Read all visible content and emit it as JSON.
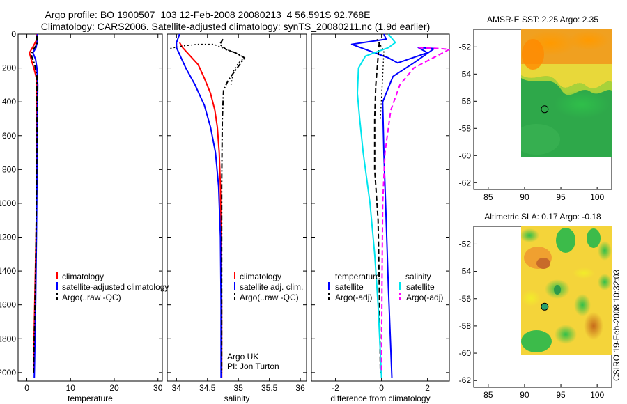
{
  "header": {
    "title_line1": "Argo profile: BO 1900507_103 12-Feb-2008 20080213_4 56.591S 92.768E",
    "title_line2": "Climatology: CARS2006. Satellite-adjusted climatology: synTS_20080211.nc (1.9d earlier)"
  },
  "credit": "CSIRO 19-Feb-2008 10:32:03",
  "colors": {
    "climatology": "#ff0000",
    "satellite": "#0000ff",
    "argo": "#000000",
    "satellite_sal": "#00e5ee",
    "argo_sal_adj": "#ff00ff"
  },
  "chart_data": [
    {
      "id": "temperature",
      "type": "line",
      "xlabel": "temperature",
      "ylabel": "",
      "xlim": [
        -2,
        31
      ],
      "ylim": [
        2050,
        0
      ],
      "xticks": [
        0,
        10,
        20,
        30
      ],
      "yticks": [
        0,
        200,
        400,
        600,
        800,
        1000,
        1200,
        1400,
        1600,
        1800,
        2000
      ],
      "legend": {
        "position": "bottom-right",
        "entries": [
          "climatology",
          "satellite-adjusted climatology",
          "Argo(..raw -QC)"
        ]
      },
      "series": [
        {
          "name": "climatology",
          "color": "#ff0000",
          "style": "solid",
          "points": [
            [
              2.2,
              0
            ],
            [
              2.3,
              30
            ],
            [
              1.5,
              70
            ],
            [
              0.6,
              110
            ],
            [
              1.0,
              150
            ],
            [
              1.6,
              200
            ],
            [
              2.2,
              260
            ],
            [
              2.3,
              400
            ],
            [
              2.3,
              800
            ],
            [
              2.1,
              1200
            ],
            [
              1.8,
              1600
            ],
            [
              1.5,
              2000
            ]
          ]
        },
        {
          "name": "satellite-adjusted climatology",
          "color": "#0000ff",
          "style": "solid",
          "points": [
            [
              2.4,
              0
            ],
            [
              2.4,
              40
            ],
            [
              2.1,
              80
            ],
            [
              1.4,
              110
            ],
            [
              2.0,
              150
            ],
            [
              2.3,
              200
            ],
            [
              2.5,
              300
            ],
            [
              2.4,
              500
            ],
            [
              2.3,
              900
            ],
            [
              2.2,
              1200
            ],
            [
              2.0,
              1600
            ],
            [
              1.7,
              2030
            ]
          ]
        },
        {
          "name": "Argo(..raw -QC)",
          "color": "#000000",
          "style": "dashdot",
          "points": [
            [
              2.3,
              10
            ],
            [
              2.3,
              60
            ],
            [
              1.2,
              100
            ],
            [
              1.1,
              130
            ],
            [
              1.8,
              180
            ],
            [
              2.3,
              250
            ],
            [
              2.3,
              600
            ],
            [
              2.2,
              1000
            ],
            [
              2.0,
              1400
            ],
            [
              1.7,
              1800
            ],
            [
              1.5,
              2000
            ]
          ]
        }
      ]
    },
    {
      "id": "salinity",
      "type": "line",
      "xlabel": "salinity",
      "ylabel": "",
      "xlim": [
        33.85,
        36.1
      ],
      "ylim": [
        2050,
        0
      ],
      "xticks": [
        34,
        34.5,
        35,
        35.5,
        36
      ],
      "xticklabels": [
        "34",
        "34.5",
        "35",
        "35.5",
        "36"
      ],
      "legend": {
        "position": "bottom-right",
        "entries": [
          "climatology",
          "satellite adj. clim.",
          "Argo(..raw -QC)"
        ]
      },
      "annotation": [
        "Argo UK",
        "PI: Jon Turton"
      ],
      "series": [
        {
          "name": "climatology",
          "color": "#ff0000",
          "style": "solid",
          "points": [
            [
              34.05,
              50
            ],
            [
              34.1,
              80
            ],
            [
              34.2,
              120
            ],
            [
              34.35,
              180
            ],
            [
              34.45,
              260
            ],
            [
              34.55,
              350
            ],
            [
              34.62,
              450
            ],
            [
              34.66,
              550
            ],
            [
              34.69,
              700
            ],
            [
              34.71,
              900
            ],
            [
              34.72,
              1200
            ],
            [
              34.73,
              1600
            ],
            [
              34.73,
              2030
            ]
          ]
        },
        {
          "name": "satellite adj. clim.",
          "color": "#0000ff",
          "style": "solid",
          "points": [
            [
              34.05,
              0
            ],
            [
              34.0,
              50
            ],
            [
              34.0,
              80
            ],
            [
              34.05,
              120
            ],
            [
              34.15,
              200
            ],
            [
              34.3,
              300
            ],
            [
              34.45,
              420
            ],
            [
              34.55,
              550
            ],
            [
              34.63,
              700
            ],
            [
              34.68,
              900
            ],
            [
              34.71,
              1200
            ],
            [
              34.72,
              1600
            ],
            [
              34.72,
              2030
            ]
          ]
        },
        {
          "name": "Argo(..raw -QC)",
          "color": "#000000",
          "style": "dashdot",
          "points": [
            [
              34.75,
              30
            ],
            [
              34.7,
              60
            ],
            [
              34.8,
              90
            ],
            [
              34.95,
              110
            ],
            [
              35.1,
              140
            ],
            [
              34.98,
              200
            ],
            [
              34.84,
              270
            ],
            [
              34.76,
              330
            ],
            [
              34.74,
              500
            ],
            [
              34.73,
              900
            ],
            [
              34.73,
              1400
            ],
            [
              34.73,
              2000
            ]
          ]
        },
        {
          "name": "",
          "color": "#000000",
          "style": "dotted",
          "points": [
            [
              33.9,
              85
            ],
            [
              34.1,
              70
            ],
            [
              34.35,
              60
            ],
            [
              34.6,
              60
            ],
            [
              34.8,
              90
            ],
            [
              34.95,
              110
            ],
            [
              35.1,
              140
            ],
            [
              35.0,
              170
            ],
            [
              34.92,
              220
            ],
            [
              34.88,
              300
            ]
          ]
        }
      ]
    },
    {
      "id": "difference",
      "type": "line",
      "xlabel": "difference from climatology",
      "ylabel": "",
      "xlim": [
        -3.05,
        2.95
      ],
      "ylim": [
        2050,
        0
      ],
      "xticks": [
        -2,
        0,
        2
      ],
      "legend": {
        "position": "bottom",
        "columns": [
          {
            "title": "temperature",
            "entries": [
              "satellite",
              "Argo(-adj)"
            ]
          },
          {
            "title": "salinity",
            "entries": [
              "satellite",
              "Argo(-adj)"
            ]
          }
        ]
      },
      "series": [
        {
          "name": "satellite",
          "group": "temperature",
          "color": "#0000ff",
          "style": "solid",
          "points": [
            [
              0.1,
              0
            ],
            [
              0.2,
              30
            ],
            [
              -1.3,
              60
            ],
            [
              -0.5,
              100
            ],
            [
              0.3,
              140
            ],
            [
              0.7,
              170
            ],
            [
              2.0,
              110
            ],
            [
              1.6,
              80
            ],
            [
              2.3,
              85
            ],
            [
              1.4,
              170
            ],
            [
              0.5,
              250
            ],
            [
              0.05,
              400
            ],
            [
              0.1,
              700
            ],
            [
              0.2,
              1100
            ],
            [
              0.3,
              1500
            ],
            [
              0.45,
              2030
            ]
          ]
        },
        {
          "name": "Argo(-adj)",
          "group": "temperature",
          "color": "#000000",
          "style": "dashed",
          "points": [
            [
              -0.1,
              50
            ],
            [
              -0.25,
              300
            ],
            [
              -0.3,
              500
            ],
            [
              -0.3,
              800
            ],
            [
              -0.15,
              1100
            ],
            [
              -0.1,
              1500
            ],
            [
              -0.05,
              2000
            ]
          ]
        },
        {
          "name": "satellite",
          "group": "salinity",
          "color": "#00e5ee",
          "style": "solid",
          "points": [
            [
              0.3,
              0
            ],
            [
              0.6,
              50
            ],
            [
              0.3,
              80
            ],
            [
              -0.7,
              130
            ],
            [
              -1.0,
              200
            ],
            [
              -1.05,
              350
            ],
            [
              -0.95,
              500
            ],
            [
              -0.8,
              700
            ],
            [
              -0.5,
              1000
            ],
            [
              -0.3,
              1300
            ],
            [
              -0.15,
              1600
            ],
            [
              0.0,
              2030
            ]
          ]
        },
        {
          "name": "Argo(-adj)",
          "group": "salinity",
          "color": "#ff00ff",
          "style": "dashed",
          "points": [
            [
              1.6,
              80
            ],
            [
              2.5,
              85
            ],
            [
              2.95,
              90
            ],
            [
              1.4,
              200
            ],
            [
              0.8,
              300
            ],
            [
              0.4,
              450
            ],
            [
              0.15,
              700
            ],
            [
              0.05,
              1000
            ],
            [
              0.02,
              1500
            ],
            [
              0.0,
              2000
            ]
          ]
        },
        {
          "name": "",
          "color": "#000000",
          "style": "dotted",
          "points": [
            [
              -0.2,
              30
            ],
            [
              0.1,
              100
            ],
            [
              0.05,
              250
            ],
            [
              -0.05,
              500
            ]
          ]
        }
      ]
    },
    {
      "id": "sst_map",
      "type": "heatmap",
      "title": "AMSR-E SST: 2.25 Argo: 2.35",
      "xlim": [
        83,
        102
      ],
      "ylim": [
        -62.5,
        -50.7
      ],
      "xticks": [
        85,
        90,
        95,
        100
      ],
      "yticks": [
        -52,
        -54,
        -56,
        -58,
        -60,
        -62
      ],
      "data_extent": {
        "lon": [
          90,
          102
        ],
        "lat": [
          -60.1,
          -50.7
        ]
      },
      "marker": {
        "lon": 92.77,
        "lat": -56.59
      }
    },
    {
      "id": "sla_map",
      "type": "heatmap",
      "title": "Altimetric SLA: 0.17 Argo: -0.18",
      "xlim": [
        83,
        102
      ],
      "ylim": [
        -62.5,
        -50.7
      ],
      "xticks": [
        85,
        90,
        95,
        100
      ],
      "yticks": [
        -52,
        -54,
        -56,
        -58,
        -60,
        -62
      ],
      "data_extent": {
        "lon": [
          90,
          102
        ],
        "lat": [
          -60.1,
          -50.7
        ]
      },
      "marker": {
        "lon": 92.77,
        "lat": -56.59
      }
    }
  ]
}
